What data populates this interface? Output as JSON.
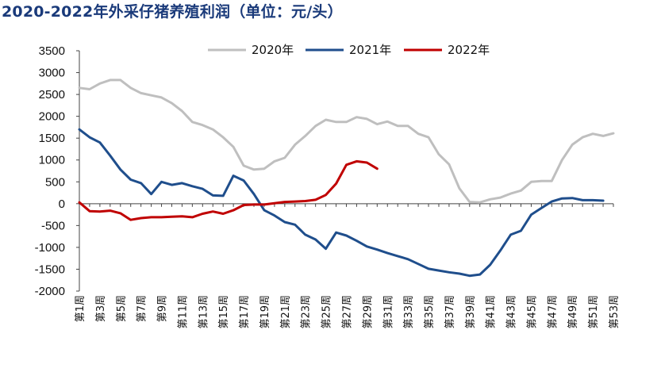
{
  "title": "2020-2022年外采仔猪养殖利润（单位：元/头）",
  "chart_data": {
    "type": "line",
    "title": "2020-2022年外采仔猪养殖利润（单位：元/头）",
    "xlabel": "",
    "ylabel": "",
    "ylim": [
      -2000,
      3500
    ],
    "yticks": [
      -2000,
      -1500,
      -1000,
      -500,
      0,
      500,
      1000,
      1500,
      2000,
      2500,
      3000,
      3500
    ],
    "categories": [
      "第1周",
      "第2周",
      "第3周",
      "第4周",
      "第5周",
      "第6周",
      "第7周",
      "第8周",
      "第9周",
      "第10周",
      "第11周",
      "第12周",
      "第13周",
      "第14周",
      "第15周",
      "第16周",
      "第17周",
      "第18周",
      "第19周",
      "第20周",
      "第21周",
      "第22周",
      "第23周",
      "第24周",
      "第25周",
      "第26周",
      "第27周",
      "第28周",
      "第29周",
      "第30周",
      "第31周",
      "第32周",
      "第33周",
      "第34周",
      "第35周",
      "第36周",
      "第37周",
      "第38周",
      "第39周",
      "第40周",
      "第41周",
      "第42周",
      "第43周",
      "第44周",
      "第45周",
      "第46周",
      "第47周",
      "第48周",
      "第49周",
      "第50周",
      "第51周",
      "第52周",
      "第53周"
    ],
    "tick_labels": [
      "第1周",
      "第3周",
      "第5周",
      "第7周",
      "第9周",
      "第11周",
      "第13周",
      "第15周",
      "第17周",
      "第19周",
      "第21周",
      "第23周",
      "第25周",
      "第27周",
      "第29周",
      "第31周",
      "第33周",
      "第35周",
      "第37周",
      "第39周",
      "第41周",
      "第43周",
      "第45周",
      "第47周",
      "第49周",
      "第51周",
      "第53周"
    ],
    "legend_position": "top-center",
    "series": [
      {
        "name": "2020年",
        "color": "#bfbfbf",
        "values": [
          2650,
          2620,
          2750,
          2830,
          2830,
          2650,
          2530,
          2480,
          2430,
          2300,
          2120,
          1870,
          1800,
          1700,
          1520,
          1300,
          870,
          780,
          800,
          970,
          1050,
          1350,
          1550,
          1780,
          1920,
          1870,
          1870,
          1980,
          1940,
          1820,
          1880,
          1780,
          1780,
          1600,
          1520,
          1130,
          900,
          350,
          40,
          30,
          100,
          140,
          230,
          300,
          500,
          520,
          520,
          1000,
          1350,
          1520,
          1600,
          1550,
          1610
        ]
      },
      {
        "name": "2021年",
        "color": "#1f4e8c",
        "values": [
          1700,
          1520,
          1400,
          1100,
          780,
          550,
          470,
          220,
          500,
          430,
          470,
          400,
          340,
          190,
          180,
          640,
          530,
          220,
          -150,
          -270,
          -420,
          -480,
          -710,
          -820,
          -1030,
          -660,
          -730,
          -850,
          -980,
          -1050,
          -1130,
          -1200,
          -1270,
          -1380,
          -1490,
          -1530,
          -1570,
          -1600,
          -1650,
          -1620,
          -1400,
          -1070,
          -710,
          -620,
          -250,
          -100,
          50,
          120,
          130,
          80,
          80,
          70,
          null
        ]
      },
      {
        "name": "2022年",
        "color": "#c00000",
        "values": [
          30,
          -170,
          -180,
          -160,
          -220,
          -370,
          -330,
          -310,
          -310,
          -300,
          -290,
          -310,
          -230,
          -180,
          -230,
          -150,
          -30,
          -20,
          -20,
          10,
          40,
          50,
          60,
          90,
          200,
          460,
          890,
          970,
          940,
          800,
          null,
          null,
          null,
          null,
          null,
          null,
          null,
          null,
          null,
          null,
          null,
          null,
          null,
          null,
          null,
          null,
          null,
          null,
          null,
          null,
          null,
          null,
          null
        ]
      }
    ]
  }
}
